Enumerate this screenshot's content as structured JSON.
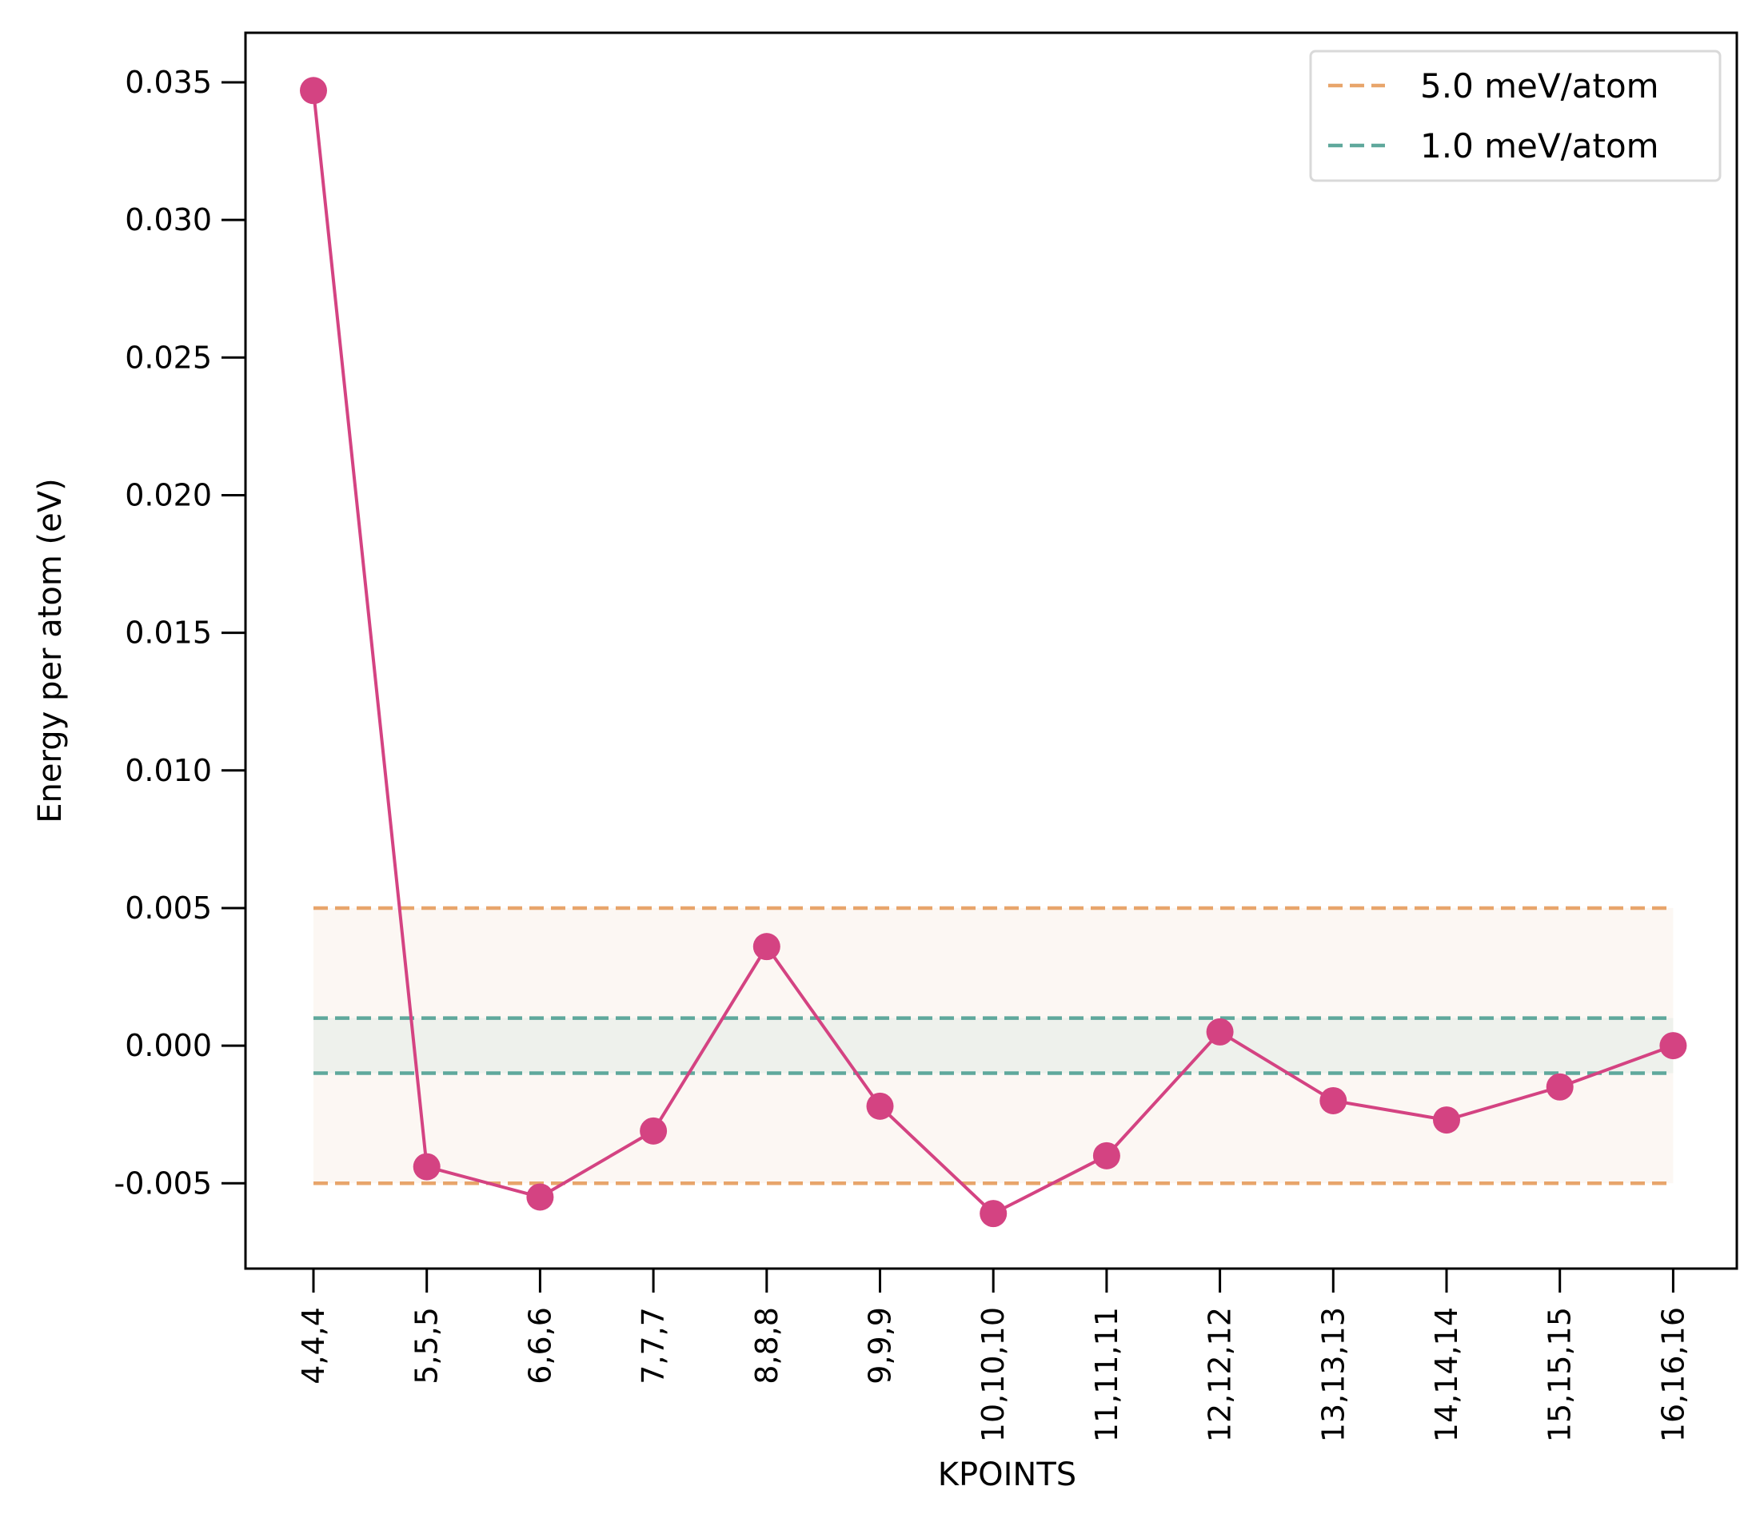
{
  "chart_data": {
    "type": "line",
    "title": "",
    "xlabel": "KPOINTS",
    "ylabel": "Energy per atom (eV)",
    "categories": [
      "4,4,4",
      "5,5,5",
      "6,6,6",
      "7,7,7",
      "8,8,8",
      "9,9,9",
      "10,10,10",
      "11,11,11",
      "12,12,12",
      "13,13,13",
      "14,14,14",
      "15,15,15",
      "16,16,16"
    ],
    "series": [
      {
        "values": [
          0.0347,
          -0.0044,
          -0.0055,
          -0.0031,
          0.0036,
          -0.0022,
          -0.0061,
          -0.004,
          0.0005,
          -0.002,
          -0.0027,
          -0.0015,
          0.0
        ],
        "color": "#D44382"
      }
    ],
    "thresholds": [
      {
        "name": "5.0 meV/atom",
        "value": 0.005,
        "color": "#E8A56B",
        "fill": "#FCF7F3"
      },
      {
        "name": "1.0 meV/atom",
        "value": 0.001,
        "color": "#5FA89C",
        "fill": "#EEF1EC"
      }
    ],
    "yticks": [
      "0.035",
      "0.030",
      "0.025",
      "0.020",
      "0.015",
      "0.010",
      "0.005",
      "0.000",
      "-0.005"
    ],
    "ytick_values": [
      0.035,
      0.03,
      0.025,
      0.02,
      0.015,
      0.01,
      0.005,
      0.0,
      -0.005
    ],
    "ylim": [
      -0.0081,
      0.0368
    ],
    "grid": false,
    "legend_position": "top-right"
  }
}
